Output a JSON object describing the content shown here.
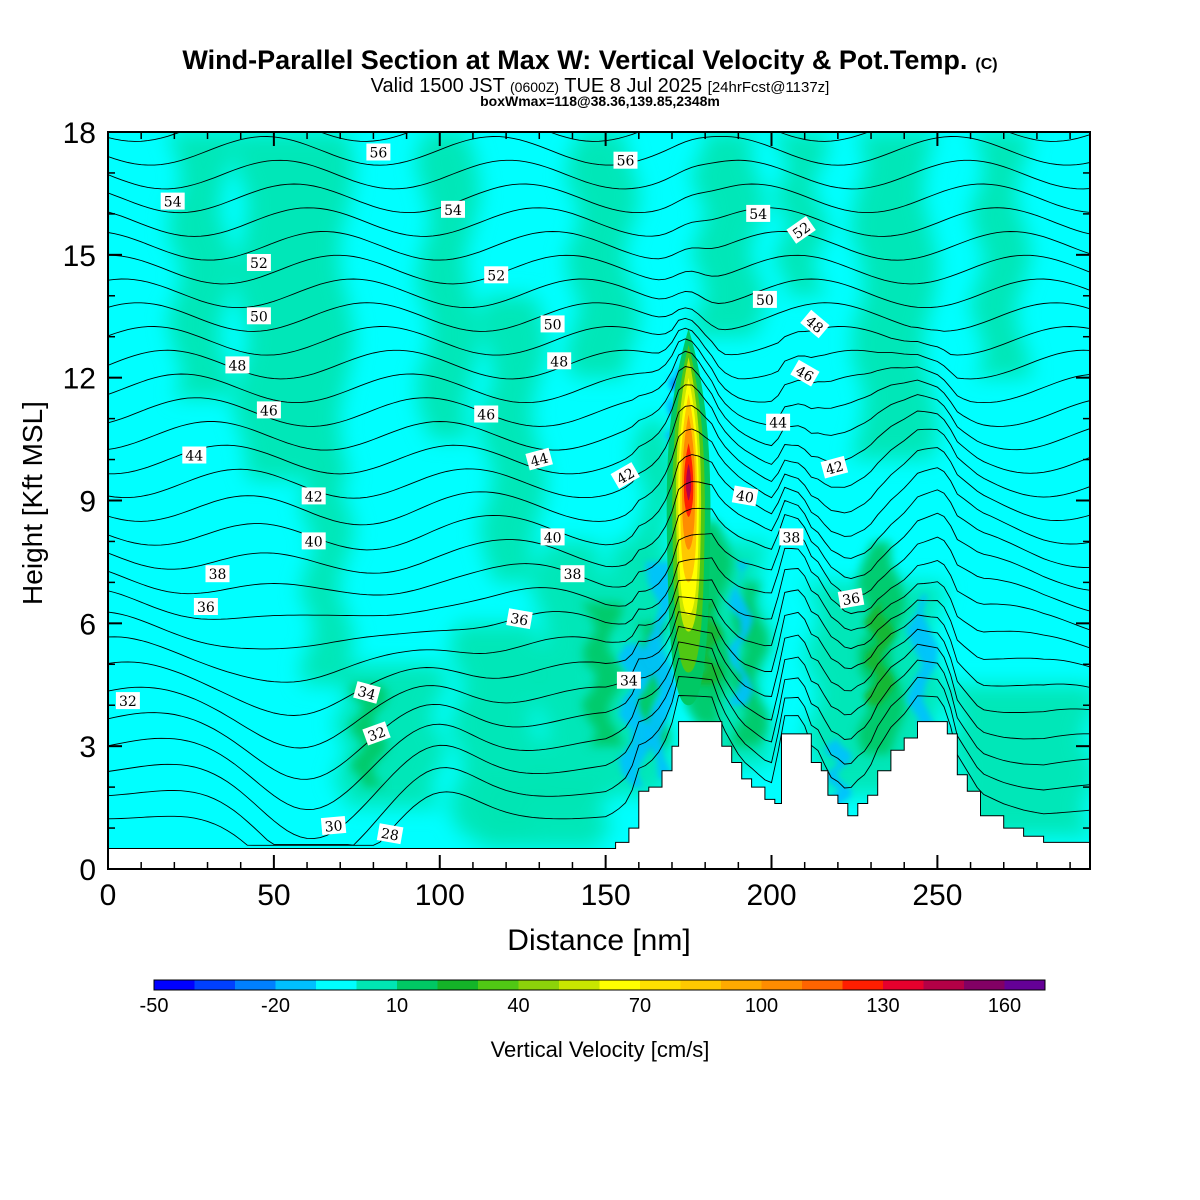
{
  "chart_data": {
    "type": "heatmap",
    "title": "Wind-Parallel Section at Max W: Vertical Velocity & Pot.Temp.",
    "title_mark": "(C)",
    "subtitle": {
      "prefix": "Valid 1500 JST",
      "zulu": "(0600Z)",
      "date": "TUE 8 Jul 2025",
      "forecast": "[24hrFcst@1137z]"
    },
    "subtitle2": "boxWmax=118@38.36,139.85,2348m",
    "xlabel": "Distance [nm]",
    "ylabel": "Height [Kft MSL]",
    "xlim": [
      0,
      296
    ],
    "ylim": [
      0,
      18
    ],
    "xticks": [
      0,
      50,
      100,
      150,
      200,
      250
    ],
    "yticks": [
      0,
      3,
      6,
      9,
      12,
      15,
      18
    ],
    "grid": false,
    "colorbar": {
      "label": "Vertical Velocity [cm/s]",
      "min": -50,
      "max": 180,
      "step": 10,
      "tick_labels": [
        -50,
        -20,
        10,
        40,
        70,
        100,
        130,
        160
      ],
      "colors": [
        "#0000ff",
        "#0040ff",
        "#0080ff",
        "#00c0ff",
        "#00ffff",
        "#00e6b4",
        "#00c864",
        "#14b428",
        "#50c814",
        "#8cd20a",
        "#c8e600",
        "#ffff00",
        "#ffe100",
        "#ffc800",
        "#ffaa00",
        "#ff8c00",
        "#ff6400",
        "#ff1e00",
        "#e6002d",
        "#b40046",
        "#820064",
        "#640096"
      ]
    },
    "terrain_kft": [
      [
        0,
        0.5
      ],
      [
        150,
        0.5
      ],
      [
        153,
        0.65
      ],
      [
        157,
        1.0
      ],
      [
        160,
        1.9
      ],
      [
        163,
        2.0
      ],
      [
        167,
        2.4
      ],
      [
        170,
        3.0
      ],
      [
        172,
        3.6
      ],
      [
        182,
        3.6
      ],
      [
        185,
        3.0
      ],
      [
        188,
        2.6
      ],
      [
        191,
        2.2
      ],
      [
        194,
        2.0
      ],
      [
        198,
        1.7
      ],
      [
        201,
        1.6
      ],
      [
        203,
        3.3
      ],
      [
        209,
        3.3
      ],
      [
        212,
        2.6
      ],
      [
        215,
        2.4
      ],
      [
        217,
        1.8
      ],
      [
        220,
        1.6
      ],
      [
        223,
        1.3
      ],
      [
        226,
        1.6
      ],
      [
        229,
        1.8
      ],
      [
        232,
        2.4
      ],
      [
        236,
        2.9
      ],
      [
        240,
        3.2
      ],
      [
        244,
        3.6
      ],
      [
        250,
        3.6
      ],
      [
        253,
        3.3
      ],
      [
        256,
        2.3
      ],
      [
        259,
        1.9
      ],
      [
        263,
        1.3
      ],
      [
        270,
        1.0
      ],
      [
        276,
        0.8
      ],
      [
        282,
        0.65
      ],
      [
        296,
        0.65
      ]
    ],
    "updraft_core": {
      "distance_nm": 175,
      "base_kft": 4.5,
      "top_kft": 13.2,
      "peak_kft": 9.4,
      "peak_cms": 150
    },
    "contours_theta": [
      28,
      29,
      30,
      31,
      32,
      33,
      34,
      35,
      36,
      37,
      38,
      39,
      40,
      41,
      42,
      43,
      44,
      45,
      46,
      47,
      48,
      49,
      50,
      51,
      52,
      53,
      54,
      55,
      56,
      57
    ],
    "contour_labels": [
      {
        "v": "56",
        "x": 81.5,
        "y": 17.5,
        "a": 0
      },
      {
        "v": "56",
        "x": 156,
        "y": 17.3,
        "a": 0
      },
      {
        "v": "54",
        "x": 19.5,
        "y": 16.3,
        "a": 0
      },
      {
        "v": "54",
        "x": 104,
        "y": 16.1,
        "a": 0
      },
      {
        "v": "54",
        "x": 196,
        "y": 16.0,
        "a": 0
      },
      {
        "v": "52",
        "x": 209,
        "y": 15.6,
        "a": -35
      },
      {
        "v": "52",
        "x": 45.5,
        "y": 14.8,
        "a": 0
      },
      {
        "v": "52",
        "x": 117,
        "y": 14.5,
        "a": 0
      },
      {
        "v": "50",
        "x": 198,
        "y": 13.9,
        "a": 0
      },
      {
        "v": "50",
        "x": 45.5,
        "y": 13.5,
        "a": 0
      },
      {
        "v": "50",
        "x": 134,
        "y": 13.3,
        "a": 0
      },
      {
        "v": "48",
        "x": 213,
        "y": 13.3,
        "a": 40
      },
      {
        "v": "48",
        "x": 136,
        "y": 12.4,
        "a": 0
      },
      {
        "v": "48",
        "x": 39,
        "y": 12.3,
        "a": 0
      },
      {
        "v": "46",
        "x": 210,
        "y": 12.1,
        "a": 30
      },
      {
        "v": "46",
        "x": 48.5,
        "y": 11.2,
        "a": 0
      },
      {
        "v": "46",
        "x": 114,
        "y": 11.1,
        "a": 0
      },
      {
        "v": "44",
        "x": 202,
        "y": 10.9,
        "a": 0
      },
      {
        "v": "44",
        "x": 26,
        "y": 10.1,
        "a": 0
      },
      {
        "v": "44",
        "x": 130,
        "y": 10.0,
        "a": -15
      },
      {
        "v": "42",
        "x": 219,
        "y": 9.8,
        "a": -15
      },
      {
        "v": "42",
        "x": 156,
        "y": 9.6,
        "a": -30
      },
      {
        "v": "42",
        "x": 62,
        "y": 9.1,
        "a": 0
      },
      {
        "v": "40",
        "x": 192,
        "y": 9.1,
        "a": 10
      },
      {
        "v": "40",
        "x": 62,
        "y": 8.0,
        "a": 0
      },
      {
        "v": "40",
        "x": 134,
        "y": 8.1,
        "a": 0
      },
      {
        "v": "38",
        "x": 206,
        "y": 8.1,
        "a": 0
      },
      {
        "v": "38",
        "x": 33,
        "y": 7.2,
        "a": 0
      },
      {
        "v": "38",
        "x": 140,
        "y": 7.2,
        "a": 0
      },
      {
        "v": "36",
        "x": 29.5,
        "y": 6.4,
        "a": 0
      },
      {
        "v": "36",
        "x": 124,
        "y": 6.1,
        "a": 10
      },
      {
        "v": "36",
        "x": 224,
        "y": 6.6,
        "a": -10
      },
      {
        "v": "34",
        "x": 78,
        "y": 4.3,
        "a": 15
      },
      {
        "v": "34",
        "x": 157,
        "y": 4.6,
        "a": 0
      },
      {
        "v": "32",
        "x": 6,
        "y": 4.1,
        "a": 0
      },
      {
        "v": "32",
        "x": 81,
        "y": 3.3,
        "a": -20
      },
      {
        "v": "30",
        "x": 68,
        "y": 1.05,
        "a": -5
      },
      {
        "v": "28",
        "x": 85,
        "y": 0.85,
        "a": 10
      }
    ]
  }
}
